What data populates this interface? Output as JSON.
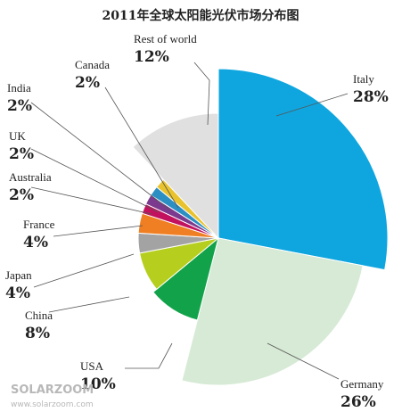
{
  "chart_data": {
    "type": "pie",
    "title": "2011年全球太阳能光伏市场分布图",
    "slices": [
      {
        "name": "Italy",
        "label": "28%",
        "value": 28,
        "color": "#0fa6e0"
      },
      {
        "name": "Germany",
        "label": "26%",
        "value": 26,
        "color": "#d6ead5"
      },
      {
        "name": "USA",
        "label": "10%",
        "value": 10,
        "color": "#12a34a"
      },
      {
        "name": "China",
        "label": "8%",
        "value": 8,
        "color": "#b6cf1e"
      },
      {
        "name": "Japan",
        "label": "4%",
        "value": 4,
        "color": "#a3a3a3"
      },
      {
        "name": "France",
        "label": "4%",
        "value": 4,
        "color": "#ef7f22"
      },
      {
        "name": "Australia",
        "label": "2%",
        "value": 2,
        "color": "#c2125f"
      },
      {
        "name": "UK",
        "label": "2%",
        "value": 2,
        "color": "#7b3a8e"
      },
      {
        "name": "India",
        "label": "2%",
        "value": 2,
        "color": "#2b8fc4"
      },
      {
        "name": "Canada",
        "label": "2%",
        "value": 2,
        "color": "#e9c32e"
      },
      {
        "name": "Rest of world",
        "label": "12%",
        "value": 12,
        "color": "#e0e0e0"
      }
    ]
  },
  "watermark": {
    "brand": "SOLARZOOM",
    "url": "www.solarzoom.com"
  }
}
